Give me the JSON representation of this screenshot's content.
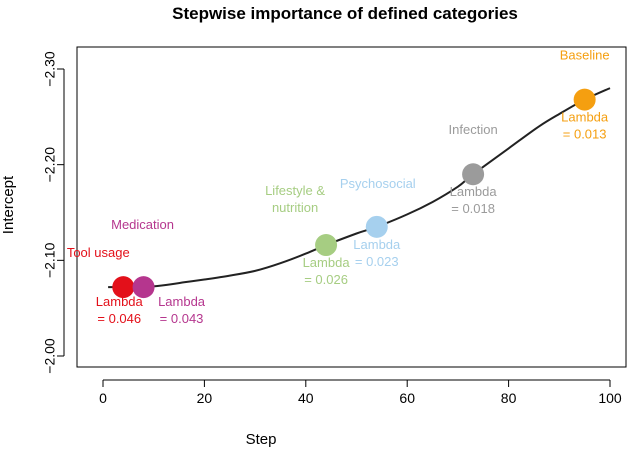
{
  "chart_data": {
    "type": "line",
    "title": "Stepwise importance of defined categories",
    "xlabel": "Step",
    "ylabel": "Intercept",
    "xlim": [
      -5,
      102
    ],
    "ylim": [
      -1.99,
      -2.315
    ],
    "y_reversed": true,
    "x_ticks": [
      0,
      20,
      40,
      60,
      80,
      100
    ],
    "y_ticks": [
      -2.0,
      -2.1,
      -2.2,
      -2.3
    ],
    "y_tick_labels": [
      "−2.00",
      "−2.10",
      "−2.20",
      "−2.30"
    ],
    "grid": false,
    "curve": {
      "color": "#222222",
      "x": [
        1,
        4,
        8,
        12,
        16,
        20,
        25,
        30,
        35,
        40,
        44,
        50,
        54,
        60,
        65,
        70,
        73,
        80,
        86,
        90,
        95,
        100
      ],
      "y": [
        -2.072,
        -2.072,
        -2.072,
        -2.074,
        -2.077,
        -2.08,
        -2.084,
        -2.089,
        -2.097,
        -2.107,
        -2.116,
        -2.128,
        -2.135,
        -2.148,
        -2.161,
        -2.177,
        -2.19,
        -2.217,
        -2.24,
        -2.253,
        -2.268,
        -2.28
      ]
    },
    "points": [
      {
        "x": 4,
        "y": -2.072,
        "color": "#e3101a",
        "category": "Tool usage",
        "lambda_lines": [
          "Lambda",
          "= 0.046"
        ]
      },
      {
        "x": 8,
        "y": -2.072,
        "color": "#b5368e",
        "category": "Medication",
        "lambda_lines": [
          "Lambda",
          "= 0.043"
        ]
      },
      {
        "x": 44,
        "y": -2.116,
        "color": "#a6cd82",
        "category": "Lifestyle &\nnutrition",
        "lambda_lines": [
          "Lambda",
          "= 0.026"
        ]
      },
      {
        "x": 54,
        "y": -2.135,
        "color": "#a6d0ee",
        "category": "Psychosocial",
        "lambda_lines": [
          "Lambda",
          "= 0.023"
        ]
      },
      {
        "x": 73,
        "y": -2.19,
        "color": "#9b9b9b",
        "category": "Infection",
        "lambda_lines": [
          "Lambda",
          "= 0.018"
        ]
      },
      {
        "x": 95,
        "y": -2.268,
        "color": "#f59f10",
        "category": "Baseline",
        "lambda_lines": [
          "Lambda",
          "= 0.013"
        ]
      }
    ]
  }
}
